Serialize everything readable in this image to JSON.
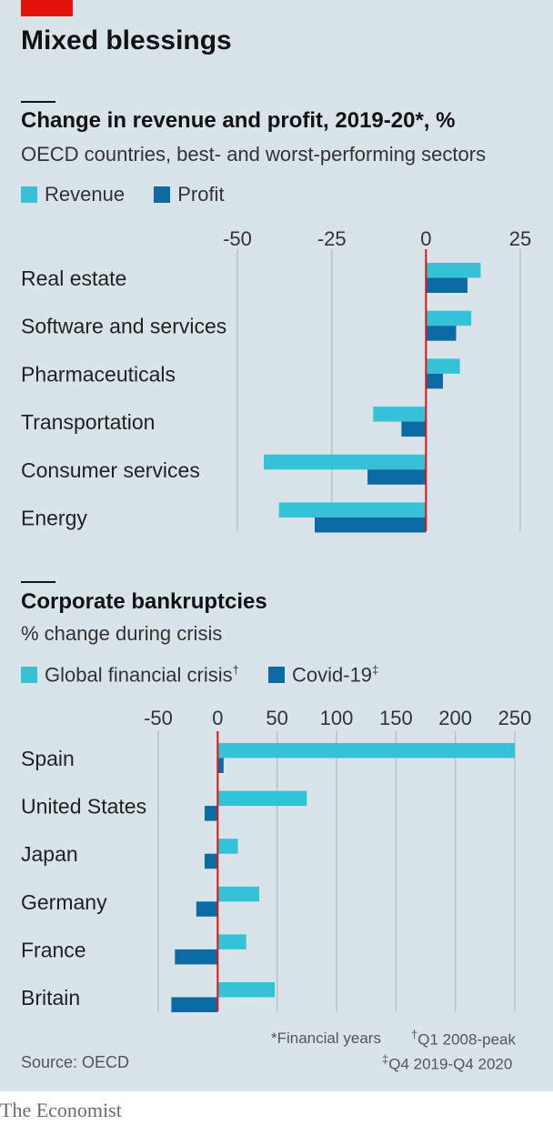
{
  "title": "Mixed blessings",
  "colors": {
    "revenue": "#36c2d6",
    "profit": "#0d6ba3",
    "zero_line": "#e3120b",
    "grid": "#b6c2c9"
  },
  "chart_data": [
    {
      "type": "bar",
      "orientation": "horizontal",
      "title": "Change in revenue and profit, 2019-20*, %",
      "subtitle": "OECD countries, best- and worst-performing sectors",
      "categories": [
        "Real estate",
        "Software and services",
        "Pharmaceuticals",
        "Transportation",
        "Consumer services",
        "Energy"
      ],
      "series": [
        {
          "name": "Revenue",
          "color": "#36c2d6",
          "values": [
            14.5,
            12,
            9,
            -14,
            -43,
            -39
          ]
        },
        {
          "name": "Profit",
          "color": "#0d6ba3",
          "values": [
            11,
            8,
            4.5,
            -6.5,
            -15.5,
            -29.5
          ]
        }
      ],
      "xlim": [
        -50,
        25
      ],
      "xticks": [
        "-50",
        "-25",
        "0",
        "25"
      ],
      "xtick_values": [
        -50,
        -25,
        0,
        25
      ],
      "grid": true,
      "legend": "top-left"
    },
    {
      "type": "bar",
      "orientation": "horizontal",
      "title": "Corporate bankruptcies",
      "subtitle": "% change during crisis",
      "categories": [
        "Spain",
        "United States",
        "Japan",
        "Germany",
        "France",
        "Britain"
      ],
      "series": [
        {
          "name": "Global financial crisis",
          "name_mark": "†",
          "color": "#36c2d6",
          "values": [
            250,
            75,
            17,
            35,
            24,
            48
          ]
        },
        {
          "name": "Covid-19",
          "name_mark": "‡",
          "color": "#0d6ba3",
          "values": [
            5,
            -11,
            -11,
            -18,
            -36,
            -39
          ]
        }
      ],
      "xlim": [
        -50,
        250
      ],
      "xticks": [
        "-50",
        "0",
        "50",
        "100",
        "150",
        "200",
        "250"
      ],
      "xtick_values": [
        -50,
        0,
        50,
        100,
        150,
        200,
        250
      ],
      "grid": true,
      "legend": "top-left"
    }
  ],
  "footnotes": {
    "star": "*Financial years",
    "dagger_mark": "†",
    "dagger": "Q1 2008-peak",
    "ddagger_mark": "‡",
    "ddagger": "Q4 2019-Q4 2020"
  },
  "source": "Source: OECD",
  "brand": "The Economist"
}
